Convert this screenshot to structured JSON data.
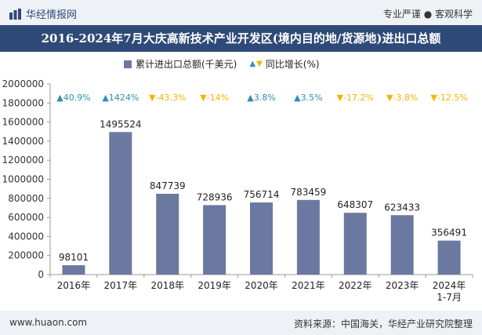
{
  "header": {
    "brand": "华经情报网",
    "tagline": "专业严谨 ● 客观科学"
  },
  "title": "2016-2024年7月大庆高新技术产业开发区(境内目的地/货源地)进出口总额",
  "legend": {
    "bar_label": "累计进出口总额(千美元)",
    "line_label": "同比增长(%)"
  },
  "footer": {
    "url": "www.huaon.com",
    "source": "资料来源：中国海关，华经产业研究院整理"
  },
  "colors": {
    "bar": "#6b79a0",
    "up": "#2e8fb3",
    "down": "#f5b400",
    "header_bg": "#2f4a78"
  },
  "chart_data": {
    "type": "bar",
    "categories": [
      "2016年",
      "2017年",
      "2018年",
      "2019年",
      "2020年",
      "2021年",
      "2022年",
      "2023年",
      "2024年\n1-7月"
    ],
    "series": [
      {
        "name": "累计进出口总额(千美元)",
        "values": [
          98101,
          1495524,
          847739,
          728936,
          756714,
          783459,
          648307,
          623433,
          356491
        ]
      }
    ],
    "growth_labels": [
      "40.9%",
      "1424%",
      "-43.3%",
      "-14%",
      "3.8%",
      "3.5%",
      "-17.2%",
      "-3.8%",
      "-12.5%"
    ],
    "growth_direction": [
      "up",
      "up",
      "down",
      "down",
      "up",
      "up",
      "down",
      "down",
      "down"
    ],
    "ylim": [
      0,
      2000000
    ],
    "yticks": [
      0,
      200000,
      400000,
      600000,
      800000,
      1000000,
      1200000,
      1400000,
      1600000,
      1800000,
      2000000
    ],
    "grid": false
  }
}
